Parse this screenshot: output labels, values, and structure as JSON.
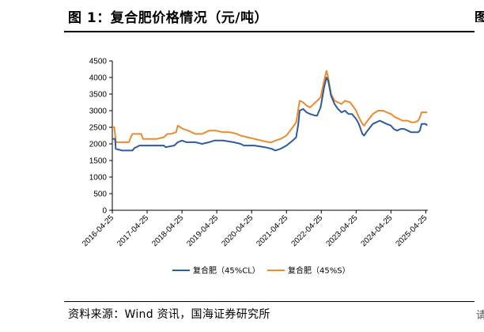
{
  "header": {
    "title": "图 1：复合肥价格情况（元/吨）",
    "edge_glyph": "图"
  },
  "footer": {
    "source": "资料来源：Wind 资讯，国海证券研究所",
    "edge_mark": "请"
  },
  "colors": {
    "series_cl": "#2e5aa0",
    "series_s": "#ed8a2f",
    "axis": "#000000"
  },
  "chart_data": {
    "type": "line",
    "title": "复合肥价格情况（元/吨）",
    "xlabel": "",
    "ylabel": "",
    "ylim": [
      0,
      4500
    ],
    "yticks": [
      0,
      500,
      1000,
      1500,
      2000,
      2500,
      3000,
      3500,
      4000,
      4500
    ],
    "xlim": [
      2016.32,
      2025.38
    ],
    "x_tick_labels": [
      "2016-04-25",
      "2017-04-25",
      "2018-04-25",
      "2019-04-25",
      "2020-04-25",
      "2021-04-25",
      "2022-04-25",
      "2023-04-25",
      "2024-04-25",
      "2025-04-25"
    ],
    "x_tick_values": [
      2016.32,
      2017.32,
      2018.32,
      2019.32,
      2020.32,
      2021.32,
      2022.32,
      2023.32,
      2024.32,
      2025.32
    ],
    "legend_position": "bottom",
    "series": [
      {
        "name": "复合肥（45%CL）",
        "color_key": "series_cl",
        "points": [
          [
            2016.32,
            2150
          ],
          [
            2016.4,
            2150
          ],
          [
            2016.42,
            1850
          ],
          [
            2016.6,
            1800
          ],
          [
            2016.9,
            1800
          ],
          [
            2016.95,
            1870
          ],
          [
            2017.1,
            1950
          ],
          [
            2017.32,
            1950
          ],
          [
            2017.8,
            1950
          ],
          [
            2017.85,
            1900
          ],
          [
            2018.1,
            1950
          ],
          [
            2018.2,
            2050
          ],
          [
            2018.32,
            2100
          ],
          [
            2018.45,
            2050
          ],
          [
            2018.7,
            2050
          ],
          [
            2018.9,
            2000
          ],
          [
            2019.1,
            2050
          ],
          [
            2019.25,
            2100
          ],
          [
            2019.5,
            2100
          ],
          [
            2019.8,
            2050
          ],
          [
            2020.0,
            2000
          ],
          [
            2020.1,
            1950
          ],
          [
            2020.4,
            1950
          ],
          [
            2020.7,
            1900
          ],
          [
            2020.9,
            1850
          ],
          [
            2021.0,
            1800
          ],
          [
            2021.15,
            1850
          ],
          [
            2021.32,
            1950
          ],
          [
            2021.5,
            2100
          ],
          [
            2021.6,
            2200
          ],
          [
            2021.66,
            2600
          ],
          [
            2021.7,
            3000
          ],
          [
            2021.8,
            3050
          ],
          [
            2021.9,
            2950
          ],
          [
            2022.0,
            2900
          ],
          [
            2022.15,
            2850
          ],
          [
            2022.2,
            2850
          ],
          [
            2022.3,
            3100
          ],
          [
            2022.4,
            3700
          ],
          [
            2022.47,
            4000
          ],
          [
            2022.52,
            3900
          ],
          [
            2022.6,
            3450
          ],
          [
            2022.7,
            3200
          ],
          [
            2022.8,
            3050
          ],
          [
            2022.9,
            2950
          ],
          [
            2023.0,
            3000
          ],
          [
            2023.1,
            2900
          ],
          [
            2023.2,
            2900
          ],
          [
            2023.32,
            2750
          ],
          [
            2023.4,
            2600
          ],
          [
            2023.5,
            2300
          ],
          [
            2023.55,
            2250
          ],
          [
            2023.65,
            2400
          ],
          [
            2023.8,
            2600
          ],
          [
            2023.9,
            2650
          ],
          [
            2024.0,
            2700
          ],
          [
            2024.1,
            2650
          ],
          [
            2024.2,
            2600
          ],
          [
            2024.32,
            2550
          ],
          [
            2024.4,
            2450
          ],
          [
            2024.5,
            2400
          ],
          [
            2024.6,
            2450
          ],
          [
            2024.7,
            2450
          ],
          [
            2024.8,
            2400
          ],
          [
            2024.9,
            2350
          ],
          [
            2025.0,
            2350
          ],
          [
            2025.1,
            2350
          ],
          [
            2025.15,
            2400
          ],
          [
            2025.2,
            2600
          ],
          [
            2025.32,
            2600
          ],
          [
            2025.36,
            2550
          ]
        ]
      },
      {
        "name": "复合肥（45%S）",
        "color_key": "series_s",
        "points": [
          [
            2016.32,
            2500
          ],
          [
            2016.38,
            2500
          ],
          [
            2016.42,
            2050
          ],
          [
            2016.6,
            2050
          ],
          [
            2016.8,
            2050
          ],
          [
            2016.85,
            2200
          ],
          [
            2016.9,
            2300
          ],
          [
            2017.15,
            2300
          ],
          [
            2017.2,
            2150
          ],
          [
            2017.6,
            2150
          ],
          [
            2017.8,
            2200
          ],
          [
            2017.9,
            2300
          ],
          [
            2018.0,
            2300
          ],
          [
            2018.15,
            2350
          ],
          [
            2018.2,
            2550
          ],
          [
            2018.35,
            2450
          ],
          [
            2018.5,
            2400
          ],
          [
            2018.7,
            2300
          ],
          [
            2018.9,
            2300
          ],
          [
            2019.0,
            2350
          ],
          [
            2019.1,
            2400
          ],
          [
            2019.3,
            2400
          ],
          [
            2019.5,
            2350
          ],
          [
            2019.7,
            2350
          ],
          [
            2019.9,
            2300
          ],
          [
            2020.0,
            2250
          ],
          [
            2020.2,
            2200
          ],
          [
            2020.4,
            2150
          ],
          [
            2020.6,
            2100
          ],
          [
            2020.8,
            2050
          ],
          [
            2020.9,
            2050
          ],
          [
            2021.0,
            2100
          ],
          [
            2021.15,
            2150
          ],
          [
            2021.32,
            2250
          ],
          [
            2021.5,
            2500
          ],
          [
            2021.6,
            2650
          ],
          [
            2021.66,
            3050
          ],
          [
            2021.7,
            3300
          ],
          [
            2021.8,
            3250
          ],
          [
            2021.9,
            3150
          ],
          [
            2022.0,
            3100
          ],
          [
            2022.15,
            3250
          ],
          [
            2022.3,
            3400
          ],
          [
            2022.4,
            3900
          ],
          [
            2022.47,
            4200
          ],
          [
            2022.52,
            4000
          ],
          [
            2022.6,
            3500
          ],
          [
            2022.7,
            3300
          ],
          [
            2022.8,
            3250
          ],
          [
            2022.9,
            3200
          ],
          [
            2023.0,
            3300
          ],
          [
            2023.15,
            3250
          ],
          [
            2023.32,
            3000
          ],
          [
            2023.4,
            2800
          ],
          [
            2023.5,
            2600
          ],
          [
            2023.55,
            2550
          ],
          [
            2023.65,
            2700
          ],
          [
            2023.8,
            2900
          ],
          [
            2023.95,
            3000
          ],
          [
            2024.1,
            3000
          ],
          [
            2024.2,
            2950
          ],
          [
            2024.32,
            2900
          ],
          [
            2024.45,
            2800
          ],
          [
            2024.55,
            2750
          ],
          [
            2024.65,
            2700
          ],
          [
            2024.8,
            2700
          ],
          [
            2024.9,
            2650
          ],
          [
            2025.0,
            2650
          ],
          [
            2025.1,
            2700
          ],
          [
            2025.15,
            2800
          ],
          [
            2025.2,
            2950
          ],
          [
            2025.32,
            2950
          ],
          [
            2025.36,
            2950
          ]
        ]
      }
    ]
  }
}
